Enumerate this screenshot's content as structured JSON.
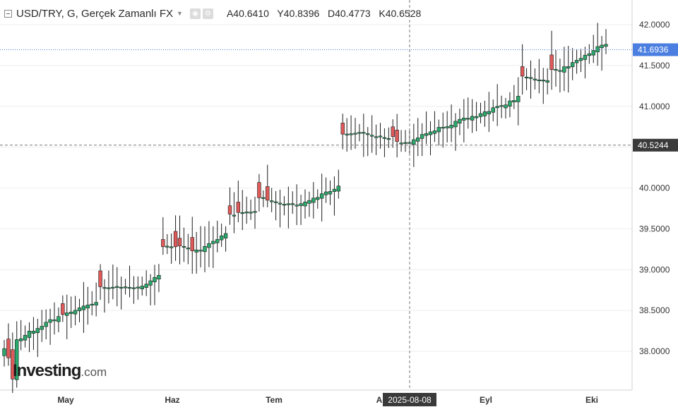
{
  "header": {
    "symbol_title": "USD/TRY, G, Gerçek Zamanlı FX",
    "open_label": "A",
    "open_value": "40.6410",
    "high_label": "Y",
    "high_value": "40.8396",
    "low_label": "D",
    "low_value": "40.4773",
    "close_label": "K",
    "close_value": "40.6528",
    "dropdown_icon": "chevron-down-icon",
    "icons": [
      "eye-icon",
      "settings-icon"
    ]
  },
  "logo": {
    "main": "Investing",
    "suffix": ".com"
  },
  "colors": {
    "up": "#2aa96b",
    "down": "#e05a5a",
    "wick": "#1b1b1b",
    "current_price_badge": "#4a7ee0",
    "crosshair_badge": "#3a3a3a",
    "grid": "#eeeeee",
    "axis_text": "#333333"
  },
  "chart_data": {
    "type": "candlestick",
    "title": "USD/TRY, G, Gerçek Zamanlı FX",
    "ylim": [
      37.55,
      42.2
    ],
    "y_ticks": [
      "42.0000",
      "41.5000",
      "41.0000",
      "40.5000",
      "40.0000",
      "39.5000",
      "39.0000",
      "38.5000",
      "38.0000"
    ],
    "x_ticks": [
      "May",
      "Haz",
      "Tem",
      "A",
      "Eyl",
      "Eki"
    ],
    "current_price": "41.6936",
    "crosshair": {
      "price": "40.5244",
      "date": "2025-08-08"
    },
    "start_close": 38.01,
    "end_close": 41.69,
    "down_days": [
      [
        1,
        37.92
      ],
      [
        2,
        37.66
      ],
      [
        14,
        38.45
      ],
      [
        23,
        38.79
      ],
      [
        38,
        39.28
      ],
      [
        41,
        39.28
      ],
      [
        42,
        39.29
      ],
      [
        45,
        39.23
      ],
      [
        54,
        39.68
      ],
      [
        56,
        39.7
      ],
      [
        61,
        39.88
      ],
      [
        63,
        39.85
      ],
      [
        81,
        40.66
      ],
      [
        93,
        40.63
      ],
      [
        94,
        40.57
      ],
      [
        124,
        41.37
      ],
      [
        131,
        41.45
      ]
    ],
    "candles_note": "Daily OHLC candles; values estimated from the axis."
  }
}
